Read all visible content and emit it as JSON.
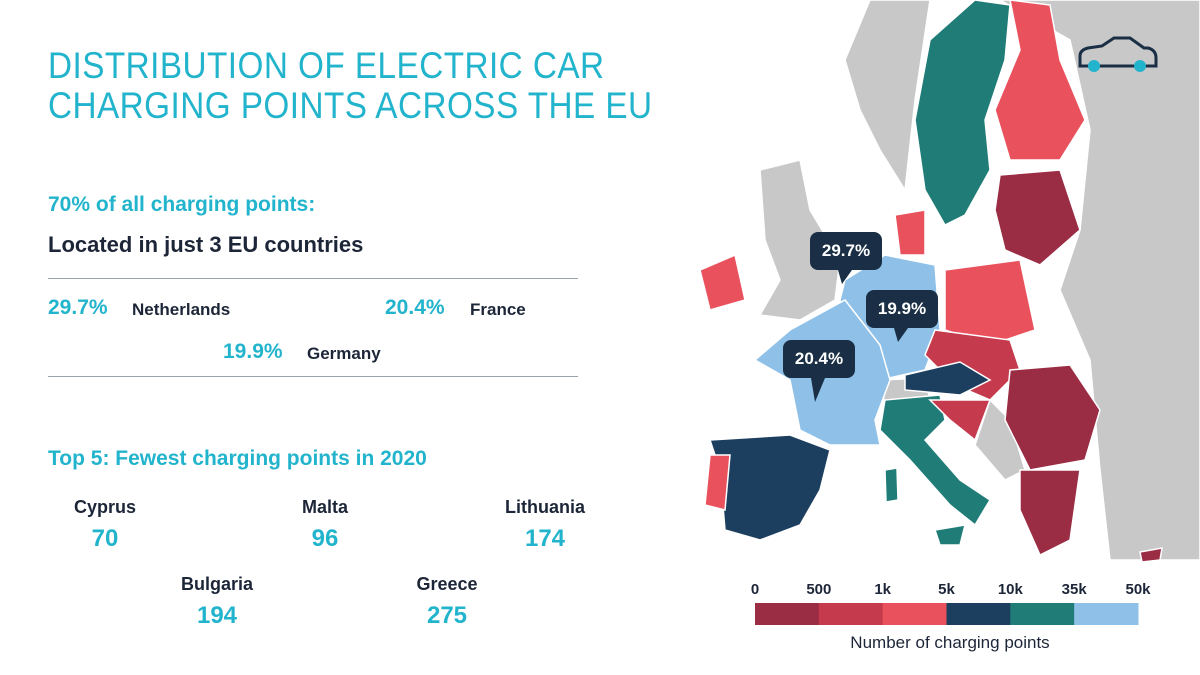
{
  "header": {
    "title_lines": [
      "DISTRIBUTION OF ELECTRIC CAR",
      "CHARGING POINTS ACROSS THE EU"
    ]
  },
  "summary": {
    "heading": "70% of all charging points:",
    "subheading": "Located in just 3 EU countries",
    "shares": [
      {
        "percent": "29.7%",
        "country": "Netherlands"
      },
      {
        "percent": "20.4%",
        "country": "France"
      },
      {
        "percent": "19.9%",
        "country": "Germany"
      }
    ]
  },
  "fewest": {
    "heading": "Top 5: Fewest charging points in 2020",
    "items": [
      {
        "country": "Cyprus",
        "value": 70
      },
      {
        "country": "Malta",
        "value": 96
      },
      {
        "country": "Lithuania",
        "value": 174
      },
      {
        "country": "Bulgaria",
        "value": 194
      },
      {
        "country": "Greece",
        "value": 275
      }
    ]
  },
  "map": {
    "callouts": [
      "29.7%",
      "19.9%",
      "20.4%"
    ],
    "legend": {
      "ticks": [
        "0",
        "500",
        "1k",
        "5k",
        "10k",
        "35k",
        "50k"
      ],
      "colors": [
        "#9a2d44",
        "#c53a4d",
        "#e9515d",
        "#1d3f5f",
        "#1f7c77",
        "#8ec0e8"
      ],
      "label": "Number of charging points"
    }
  }
}
